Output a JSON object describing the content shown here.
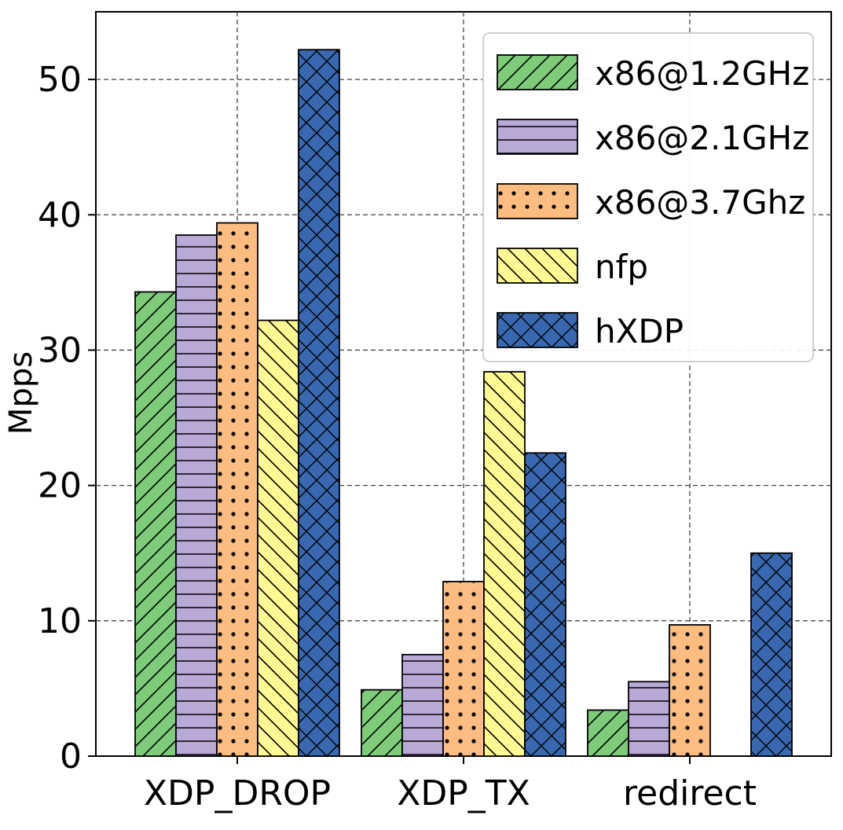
{
  "chart_data": {
    "type": "bar",
    "title": "",
    "xlabel": "",
    "ylabel": "Mpps",
    "categories": [
      "XDP_DROP",
      "XDP_TX",
      "redirect"
    ],
    "ylim": [
      0,
      55
    ],
    "yticks": [
      0,
      10,
      20,
      30,
      40,
      50
    ],
    "grid": true,
    "legend_position": "top-right",
    "series": [
      {
        "name": "x86@1.2GHz",
        "values": [
          34.3,
          4.9,
          3.4
        ],
        "color": "#7ecb7a",
        "pattern": "diagonal-forward"
      },
      {
        "name": "x86@2.1GHz",
        "values": [
          38.5,
          7.5,
          5.5
        ],
        "color": "#b9a9d6",
        "pattern": "horizontal"
      },
      {
        "name": "x86@3.7Ghz",
        "values": [
          39.4,
          12.9,
          9.7
        ],
        "color": "#fdbd80",
        "pattern": "dots"
      },
      {
        "name": "nfp",
        "values": [
          32.2,
          28.4,
          0
        ],
        "color": "#fefa93",
        "pattern": "diagonal-backward"
      },
      {
        "name": "hXDP",
        "values": [
          52.2,
          22.4,
          15.0
        ],
        "color": "#3968b0",
        "pattern": "crosshatch"
      }
    ]
  }
}
